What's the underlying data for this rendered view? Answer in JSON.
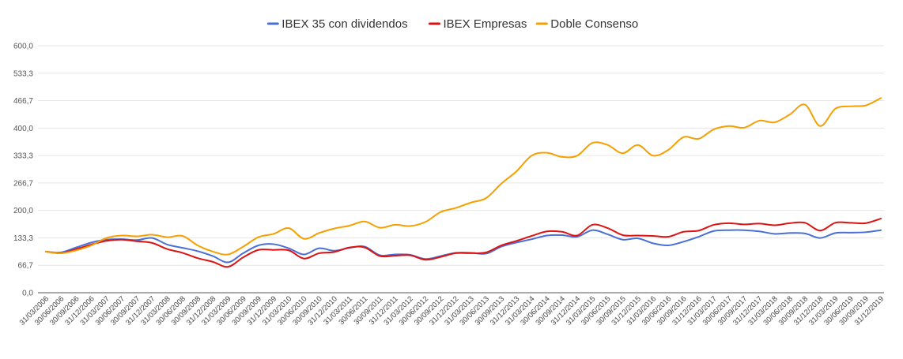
{
  "chart_data": {
    "type": "line",
    "title": "",
    "xlabel": "",
    "ylabel": "",
    "ylim": [
      0,
      600
    ],
    "yticks": [
      "0,0",
      "66,7",
      "133,3",
      "200,0",
      "266,7",
      "333,3",
      "400,0",
      "466,7",
      "533,3",
      "600,0"
    ],
    "grid": true,
    "legend_position": "top",
    "categories": [
      "31/03/2006",
      "30/06/2006",
      "30/09/2006",
      "31/12/2006",
      "31/03/2007",
      "30/06/2007",
      "30/09/2007",
      "31/12/2007",
      "31/03/2008",
      "30/06/2008",
      "30/09/2008",
      "31/12/2008",
      "31/03/2009",
      "30/06/2009",
      "30/09/2009",
      "31/12/2009",
      "31/03/2010",
      "30/06/2010",
      "30/09/2010",
      "31/12/2010",
      "31/03/2011",
      "30/06/2011",
      "30/09/2011",
      "31/12/2011",
      "31/03/2012",
      "30/06/2012",
      "30/09/2012",
      "31/12/2012",
      "31/03/2013",
      "30/06/2013",
      "30/09/2013",
      "31/12/2013",
      "31/03/2014",
      "30/06/2014",
      "30/09/2014",
      "31/12/2014",
      "31/03/2015",
      "30/06/2015",
      "30/09/2015",
      "31/12/2015",
      "31/03/2016",
      "30/06/2016",
      "30/09/2016",
      "31/12/2016",
      "31/03/2017",
      "30/06/2017",
      "30/09/2017",
      "31/12/2017",
      "31/03/2018",
      "30/06/2018",
      "30/09/2018",
      "31/12/2018",
      "31/03/2019",
      "30/06/2019",
      "30/09/2019",
      "31/12/2019"
    ],
    "series": [
      {
        "name": "IBEX 35 con dividendos",
        "color": "#4a6fd6",
        "values": [
          100,
          98,
          110,
          122,
          129,
          130,
          128,
          133,
          117,
          109,
          101,
          89,
          74,
          96,
          115,
          118,
          108,
          93,
          108,
          102,
          109,
          112,
          91,
          93,
          92,
          82,
          89,
          97,
          97,
          95,
          112,
          122,
          130,
          139,
          140,
          136,
          152,
          142,
          129,
          132,
          120,
          115,
          124,
          136,
          150,
          152,
          152,
          149,
          143,
          145,
          144,
          133,
          145,
          146,
          147,
          152
        ]
      },
      {
        "name": "IBEX Empresas",
        "color": "#dd1212",
        "values": [
          100,
          96,
          106,
          117,
          126,
          129,
          125,
          121,
          106,
          97,
          84,
          75,
          63,
          86,
          104,
          104,
          103,
          83,
          96,
          99,
          110,
          110,
          89,
          90,
          91,
          80,
          87,
          96,
          96,
          98,
          115,
          126,
          138,
          149,
          148,
          139,
          165,
          157,
          140,
          139,
          138,
          136,
          148,
          151,
          165,
          169,
          166,
          168,
          164,
          169,
          170,
          151,
          170,
          170,
          169,
          180
        ]
      },
      {
        "name": "Doble Consenso",
        "color": "#f5a000",
        "values": [
          100,
          96,
          103,
          115,
          133,
          139,
          137,
          141,
          135,
          138,
          115,
          100,
          93,
          112,
          135,
          143,
          157,
          131,
          145,
          156,
          163,
          173,
          158,
          165,
          162,
          172,
          196,
          206,
          219,
          230,
          265,
          295,
          333,
          340,
          330,
          333,
          364,
          359,
          339,
          359,
          333,
          347,
          378,
          374,
          397,
          405,
          401,
          418,
          414,
          433,
          457,
          405,
          447,
          453,
          455,
          473
        ]
      }
    ]
  }
}
